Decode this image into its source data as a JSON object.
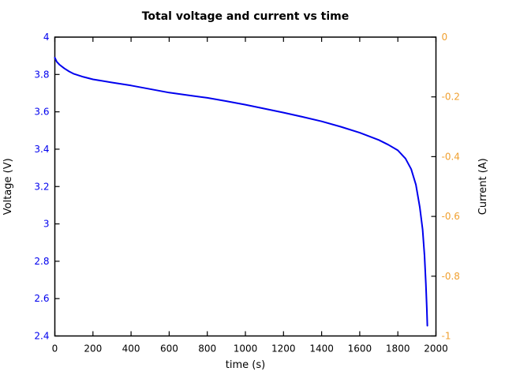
{
  "title": "Total voltage and current vs time",
  "chart_data": {
    "type": "line",
    "title": "Total voltage and current vs time",
    "xlabel": "time (s)",
    "ylabel_left": "Voltage (V)",
    "ylabel_right": "Current (A)",
    "xlim": [
      0,
      2000
    ],
    "ylim_left": [
      2.4,
      4
    ],
    "ylim_right": [
      -1,
      0
    ],
    "grid": false,
    "legend": "none",
    "x_ticks": {
      "values": [
        0,
        200,
        400,
        600,
        800,
        1000,
        1200,
        1400,
        1600,
        1800,
        2000
      ],
      "labels": [
        "0",
        "200",
        "400",
        "600",
        "800",
        "1000",
        "1200",
        "1400",
        "1600",
        "1800",
        "2000"
      ]
    },
    "y_ticks_left": {
      "values": [
        2.4,
        2.6,
        2.8,
        3.0,
        3.2,
        3.4,
        3.6,
        3.8,
        4.0
      ],
      "labels": [
        "2.4",
        "2.6",
        "2.8",
        "3",
        "3.2",
        "3.4",
        "3.6",
        "3.8",
        "4"
      ]
    },
    "y_ticks_right": {
      "values": [
        -1.0,
        -0.8,
        -0.6,
        -0.4,
        -0.2,
        0.0
      ],
      "labels": [
        "-1",
        "-0.8",
        "-0.6",
        "-0.4",
        "-0.2",
        "0"
      ]
    },
    "series": [
      {
        "name": "Total voltage",
        "axis": "left",
        "color": "#0000ee",
        "x": [
          0,
          10,
          25,
          50,
          75,
          100,
          150,
          200,
          300,
          400,
          500,
          600,
          700,
          800,
          900,
          1000,
          1100,
          1200,
          1300,
          1400,
          1500,
          1600,
          1700,
          1750,
          1800,
          1840,
          1870,
          1895,
          1915,
          1930,
          1940,
          1947,
          1952,
          1955
        ],
        "y": [
          3.89,
          3.868,
          3.852,
          3.832,
          3.816,
          3.803,
          3.787,
          3.774,
          3.757,
          3.741,
          3.722,
          3.703,
          3.689,
          3.675,
          3.657,
          3.638,
          3.617,
          3.596,
          3.573,
          3.549,
          3.52,
          3.488,
          3.449,
          3.424,
          3.394,
          3.35,
          3.293,
          3.21,
          3.09,
          2.97,
          2.83,
          2.68,
          2.55,
          2.455
        ]
      }
    ],
    "colors": {
      "voltage_ticks": "#0000ee",
      "current_ticks": "#f0a030",
      "frame": "#000000",
      "text": "#000000",
      "background": "#ffffff"
    }
  }
}
